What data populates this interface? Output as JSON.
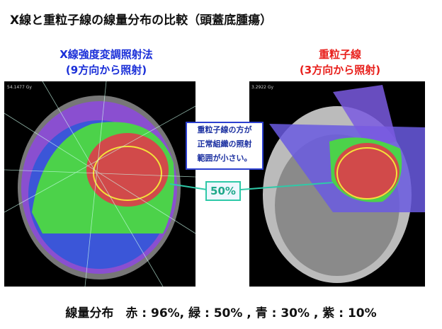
{
  "title": "X線と重粒子線の線量分布の比較（頭蓋底腫瘍）",
  "left_panel": {
    "heading": "X線強度変調照射法",
    "subheading": "(9方向から照射)",
    "image_label": "54.1477 Gy"
  },
  "right_panel": {
    "heading": "重粒子線",
    "subheading": "(3方向から照射)",
    "image_label": "3.2922 Gy"
  },
  "callout": {
    "lines": [
      "重粒子線の方が",
      "正常組織の照射",
      "範囲が小さい。"
    ]
  },
  "marker": "50%",
  "legend": "線量分布　赤 : 96%,  緑 : 50% , 青 : 30% , 紫 : 10%"
}
